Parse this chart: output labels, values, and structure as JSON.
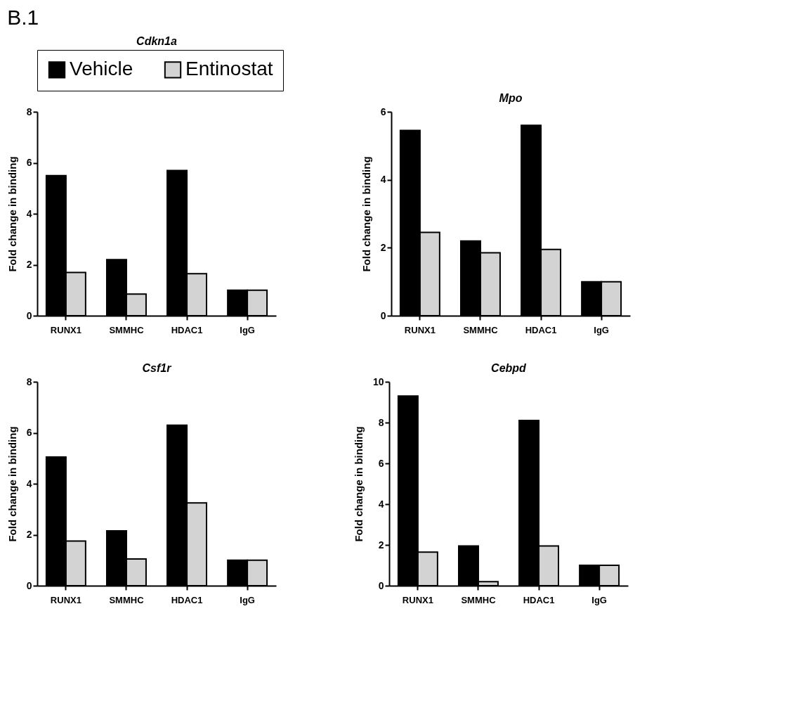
{
  "chart_data": [
    {
      "type": "bar",
      "title": "Cdkn1a",
      "ylabel": "Fold change in binding",
      "annotations": [
        "B.1"
      ],
      "legend": "top",
      "categories": [
        "RUNX1",
        "SMMHC",
        "HDAC1",
        "IgG"
      ],
      "ylim": [
        0,
        8
      ],
      "yticks": [
        0,
        2,
        4,
        6,
        8
      ],
      "series": [
        {
          "name": "Vehicle",
          "color": "#000000",
          "values": [
            5.5,
            2.2,
            5.7,
            1.0
          ]
        },
        {
          "name": "Entinostat",
          "color": "#d3d3d3",
          "values": [
            1.7,
            0.85,
            1.65,
            1.0
          ]
        }
      ]
    },
    {
      "type": "bar",
      "title": "Mpo",
      "ylabel": "Fold change in binding",
      "categories": [
        "RUNX1",
        "SMMHC",
        "HDAC1",
        "IgG"
      ],
      "ylim": [
        0,
        6
      ],
      "yticks": [
        0,
        2,
        4,
        6
      ],
      "series": [
        {
          "color": "#000000",
          "values": [
            5.45,
            2.2,
            5.6,
            1.0
          ]
        },
        {
          "color": "#d3d3d3",
          "values": [
            2.45,
            1.85,
            1.95,
            1.0
          ]
        }
      ]
    },
    {
      "type": "bar",
      "title": "Csf1r",
      "ylabel": "Fold change in binding",
      "categories": [
        "RUNX1",
        "SMMHC",
        "HDAC1",
        "IgG"
      ],
      "ylim": [
        0,
        8
      ],
      "yticks": [
        0,
        2,
        4,
        6,
        8
      ],
      "series": [
        {
          "color": "#000000",
          "values": [
            5.05,
            2.15,
            6.3,
            1.0
          ]
        },
        {
          "color": "#d3d3d3",
          "values": [
            1.75,
            1.05,
            3.25,
            1.0
          ]
        }
      ]
    },
    {
      "type": "bar",
      "title": "Cebpd",
      "ylabel": "Fold change in binding",
      "categories": [
        "RUNX1",
        "SMMHC",
        "HDAC1",
        "IgG"
      ],
      "ylim": [
        0,
        10
      ],
      "yticks": [
        0,
        2,
        4,
        6,
        8,
        10
      ],
      "series": [
        {
          "color": "#000000",
          "values": [
            9.3,
            1.95,
            8.1,
            1.0
          ]
        },
        {
          "color": "#d3d3d3",
          "values": [
            1.65,
            0.2,
            1.95,
            1.0
          ]
        }
      ]
    }
  ]
}
